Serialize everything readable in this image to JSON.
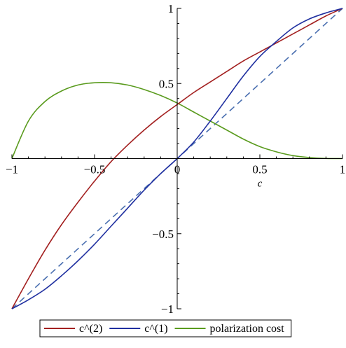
{
  "chart_data": {
    "type": "line",
    "xlabel": "c",
    "ylabel": "",
    "xlim": [
      -1,
      1
    ],
    "ylim": [
      -1,
      1
    ],
    "x_ticks": [
      {
        "value": -1,
        "label": "−1"
      },
      {
        "value": -0.5,
        "label": "−0.5"
      },
      {
        "value": 0,
        "label": "0"
      },
      {
        "value": 0.5,
        "label": "0.5"
      },
      {
        "value": 1,
        "label": "1"
      }
    ],
    "y_ticks": [
      {
        "value": -1,
        "label": "−1"
      },
      {
        "value": -0.5,
        "label": "−0.5"
      },
      {
        "value": 0.5,
        "label": "0.5"
      },
      {
        "value": 1,
        "label": "1"
      }
    ],
    "grid": false,
    "legend_position": "bottom",
    "x": [
      -1,
      -0.9,
      -0.8,
      -0.7,
      -0.6,
      -0.5,
      -0.4,
      -0.3,
      -0.2,
      -0.1,
      0,
      0.1,
      0.2,
      0.3,
      0.4,
      0.5,
      0.6,
      0.7,
      0.8,
      0.9,
      1
    ],
    "series": [
      {
        "name": "c^(2)",
        "color": "#a32020",
        "style": "solid",
        "values": [
          -1,
          -0.8,
          -0.61,
          -0.44,
          -0.29,
          -0.15,
          -0.02,
          0.09,
          0.19,
          0.28,
          0.36,
          0.44,
          0.51,
          0.58,
          0.65,
          0.71,
          0.77,
          0.83,
          0.89,
          0.95,
          1
        ]
      },
      {
        "name": "c^(1)",
        "color": "#1f2fa0",
        "style": "solid",
        "values": [
          -1,
          -0.94,
          -0.87,
          -0.78,
          -0.68,
          -0.57,
          -0.45,
          -0.33,
          -0.21,
          -0.1,
          0,
          0.11,
          0.25,
          0.4,
          0.55,
          0.68,
          0.78,
          0.87,
          0.93,
          0.97,
          1
        ]
      },
      {
        "name": "polarization cost",
        "color": "#5a9b1e",
        "style": "solid",
        "values": [
          0,
          0.25,
          0.38,
          0.45,
          0.49,
          0.505,
          0.505,
          0.49,
          0.46,
          0.42,
          0.37,
          0.31,
          0.25,
          0.19,
          0.13,
          0.08,
          0.045,
          0.02,
          0.007,
          0.001,
          0
        ]
      },
      {
        "color": "#4a6fb0",
        "style": "dashed",
        "values": [
          -1,
          -0.9,
          -0.8,
          -0.7,
          -0.6,
          -0.5,
          -0.4,
          -0.3,
          -0.2,
          -0.1,
          0,
          0.1,
          0.2,
          0.3,
          0.4,
          0.5,
          0.6,
          0.7,
          0.8,
          0.9,
          1
        ]
      }
    ]
  }
}
